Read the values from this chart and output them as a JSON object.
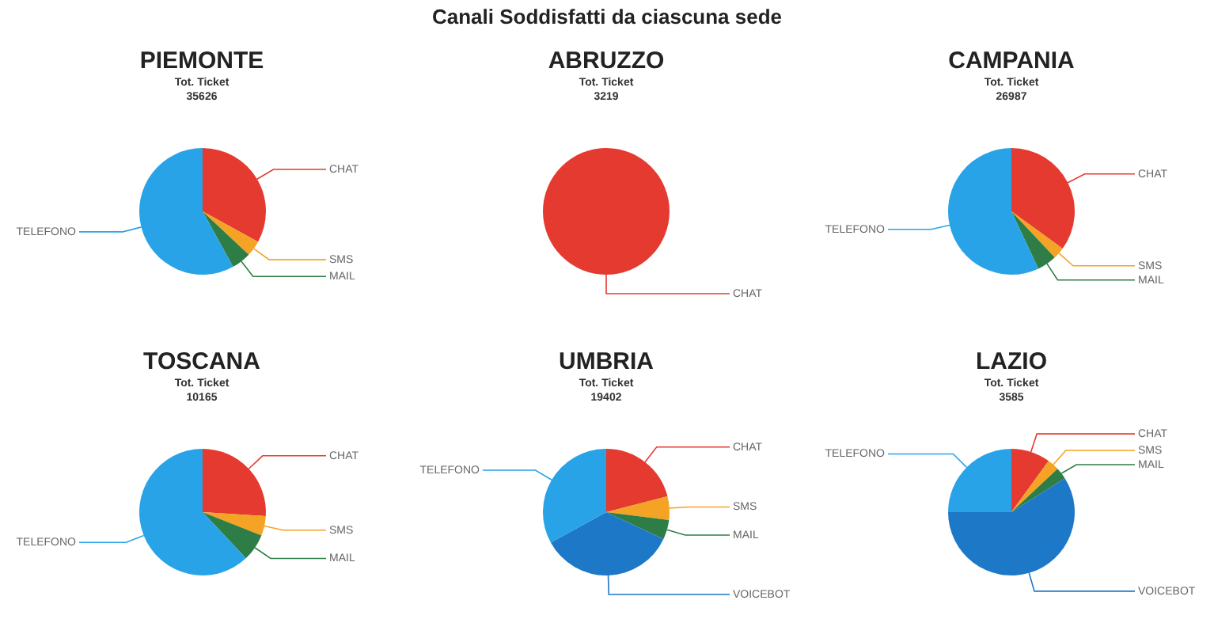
{
  "chart_data": [
    {
      "type": "other",
      "title": "Canali Soddisfatti da ciascuna sede"
    },
    {
      "type": "pie",
      "title": "PIEMONTE",
      "subtitle": "Tot. Ticket",
      "annotations": [
        "35626"
      ],
      "categories": [
        "CHAT",
        "SMS",
        "MAIL",
        "TELEFONO"
      ],
      "values": [
        33,
        4,
        5,
        58
      ],
      "colors": [
        "#e53a2f",
        "#f4a324",
        "#2e7d46",
        "#29a3e8"
      ],
      "legend": false
    },
    {
      "type": "pie",
      "title": "ABRUZZO",
      "subtitle": "Tot. Ticket",
      "annotations": [
        "3219"
      ],
      "categories": [
        "CHAT"
      ],
      "values": [
        100
      ],
      "colors": [
        "#e53a2f"
      ],
      "legend": false
    },
    {
      "type": "pie",
      "title": "CAMPANIA",
      "subtitle": "Tot. Ticket",
      "annotations": [
        "26987"
      ],
      "categories": [
        "CHAT",
        "SMS",
        "MAIL",
        "TELEFONO"
      ],
      "values": [
        35,
        3,
        5,
        57
      ],
      "colors": [
        "#e53a2f",
        "#f4a324",
        "#2e7d46",
        "#29a3e8"
      ],
      "legend": false
    },
    {
      "type": "pie",
      "title": "TOSCANA",
      "subtitle": "Tot. Ticket",
      "annotations": [
        "10165"
      ],
      "categories": [
        "CHAT",
        "SMS",
        "MAIL",
        "TELEFONO"
      ],
      "values": [
        26,
        5,
        7,
        62
      ],
      "colors": [
        "#e53a2f",
        "#f4a324",
        "#2e7d46",
        "#29a3e8"
      ],
      "legend": false
    },
    {
      "type": "pie",
      "title": "UMBRIA",
      "subtitle": "Tot. Ticket",
      "annotations": [
        "19402"
      ],
      "categories": [
        "CHAT",
        "SMS",
        "MAIL",
        "VOICEBOT",
        "TELEFONO"
      ],
      "values": [
        21,
        6,
        5,
        35,
        33
      ],
      "colors": [
        "#e53a2f",
        "#f4a324",
        "#2e7d46",
        "#1e78c8",
        "#29a3e8"
      ],
      "legend": false
    },
    {
      "type": "pie",
      "title": "LAZIO",
      "subtitle": "Tot. Ticket",
      "annotations": [
        "3585"
      ],
      "categories": [
        "CHAT",
        "SMS",
        "MAIL",
        "VOICEBOT",
        "TELEFONO"
      ],
      "values": [
        10,
        3,
        3,
        59,
        25
      ],
      "colors": [
        "#e53a2f",
        "#f4a324",
        "#2e7d46",
        "#1e78c8",
        "#29a3e8"
      ],
      "legend": false
    }
  ]
}
